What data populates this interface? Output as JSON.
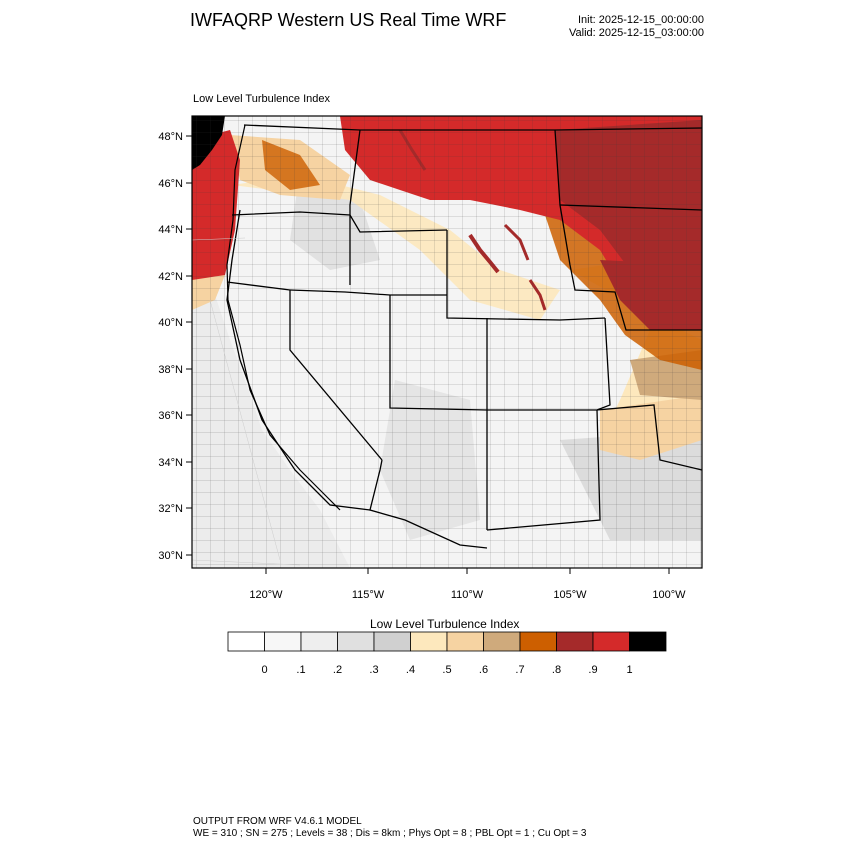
{
  "header": {
    "title": "IWFAQRP Western US Real Time WRF",
    "init": "Init: 2025-12-15_00:00:00",
    "valid": "Valid: 2025-12-15_03:00:00"
  },
  "map": {
    "subtitle": "Low Level Turbulence Index",
    "lat_labels": [
      "48°N",
      "46°N",
      "44°N",
      "42°N",
      "40°N",
      "38°N",
      "36°N",
      "34°N",
      "32°N",
      "30°N"
    ],
    "lon_labels": [
      "120°W",
      "115°W",
      "110°W",
      "105°W",
      "100°W"
    ],
    "lat_range": [
      29.5,
      48.8
    ],
    "lon_range": [
      -123.6,
      -98.6
    ]
  },
  "colorbar": {
    "title": "Low Level Turbulence Index",
    "tick_labels": [
      "0",
      ".1",
      ".2",
      ".3",
      ".4",
      ".5",
      ".6",
      ".7",
      ".8",
      ".9",
      "1"
    ],
    "colors": [
      "#ffffff",
      "#f7f7f7",
      "#eeeeee",
      "#e0e0e0",
      "#d0d0d0",
      "#fde8bd",
      "#f6d3a2",
      "#cfaa7c",
      "#cd5f00",
      "#a52a2a",
      "#d42a2a",
      "#000000"
    ]
  },
  "footer": {
    "line1": "OUTPUT FROM WRF V4.6.1 MODEL",
    "line2": "WE = 310 ; SN = 275 ; Levels = 38 ; Dis = 8km ; Phys Opt = 8 ; PBL Opt = 1 ; Cu Opt = 3"
  }
}
